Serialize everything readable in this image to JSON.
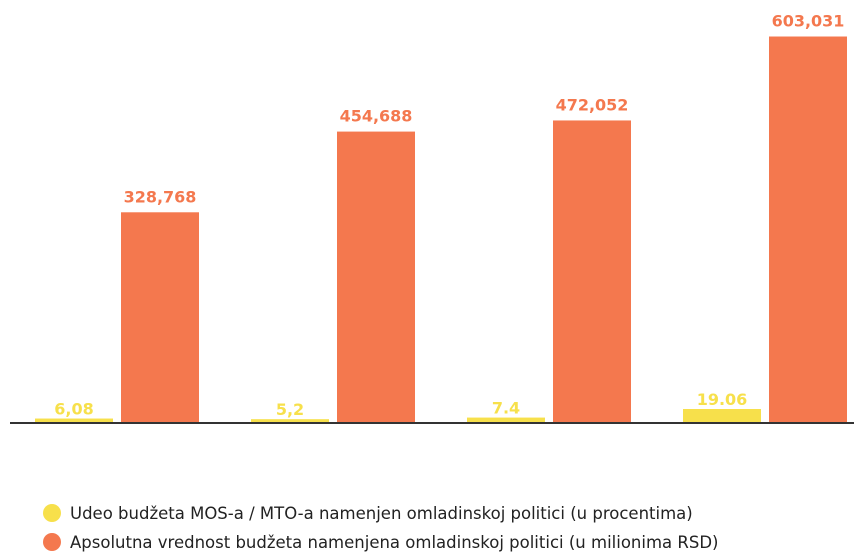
{
  "chart_data": {
    "type": "bar",
    "categories": [
      null,
      null,
      null,
      null
    ],
    "series": [
      {
        "name": "Udeo budžeta MOS-a / MTO-a namenjen omladinskoj politici (u procentima)",
        "color": "#f7e04b",
        "axis": "y2",
        "values": [
          6.08,
          5.2,
          7.4,
          19.06
        ],
        "value_labels": [
          "6,08",
          "5,2",
          "7.4",
          "19.06"
        ]
      },
      {
        "name": "Apsolutna vrednost budžeta namenjena omladinskoj politici (u milionima RSD)",
        "color": "#f4784e",
        "values": [
          328.768,
          454.688,
          472.052,
          603.031
        ],
        "value_labels": [
          "328,768",
          "454,688",
          "472,052",
          "603,031"
        ]
      }
    ],
    "ylim": [
      0,
      660
    ],
    "y2lim": [
      0,
      576
    ]
  }
}
